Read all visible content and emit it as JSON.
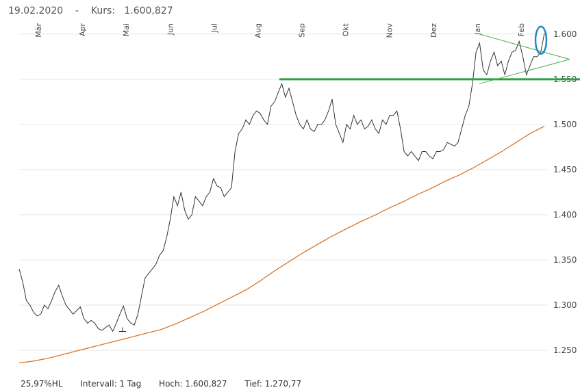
{
  "header": {
    "date": "19.02.2020",
    "separator": "-",
    "kurs_label": "Kurs:",
    "kurs_value": "1.600,827"
  },
  "footer": {
    "hl": "25,97%HL",
    "intervall": "Intervall: 1 Tag",
    "hoch": "Hoch: 1.600,827",
    "tief": "Tief:  1.270,77"
  },
  "colors": {
    "price": "#333333",
    "ma": "#d9762a",
    "support": "#2ea043",
    "triangle": "#4caf50",
    "circle": "#1e88c8",
    "grid": "#e6e6e6"
  },
  "chart_data": {
    "type": "line",
    "y_ticks": [
      "1.250",
      "1.300",
      "1.350",
      "1.400",
      "1.450",
      "1.500",
      "1.550",
      "1.600"
    ],
    "ylim": [
      1225,
      1615
    ],
    "months": [
      "Mär",
      "Apr",
      "Mai",
      "Jun",
      "Jul",
      "Aug",
      "Sep",
      "Okt",
      "Nov",
      "Dez",
      "Jan",
      "Feb"
    ],
    "grid": "horizontal",
    "series": [
      {
        "key": "price",
        "values": [
          1340,
          1325,
          1305,
          1300,
          1292,
          1288,
          1290,
          1300,
          1296,
          1305,
          1315,
          1322,
          1310,
          1300,
          1295,
          1290,
          1294,
          1298,
          1285,
          1280,
          1283,
          1280,
          1274,
          1272,
          1275,
          1278,
          1271,
          1280,
          1290,
          1299,
          1285,
          1280,
          1278,
          1290,
          1310,
          1330,
          1335,
          1340,
          1345,
          1355,
          1360,
          1375,
          1395,
          1420,
          1410,
          1425,
          1405,
          1395,
          1400,
          1420,
          1415,
          1410,
          1420,
          1425,
          1440,
          1432,
          1430,
          1420,
          1425,
          1430,
          1470,
          1490,
          1495,
          1505,
          1500,
          1510,
          1515,
          1512,
          1505,
          1500,
          1520,
          1525,
          1535,
          1545,
          1530,
          1540,
          1525,
          1510,
          1500,
          1495,
          1505,
          1495,
          1492,
          1500,
          1500,
          1505,
          1515,
          1528,
          1500,
          1490,
          1480,
          1500,
          1495,
          1510,
          1500,
          1505,
          1495,
          1498,
          1505,
          1495,
          1490,
          1505,
          1500,
          1510,
          1510,
          1515,
          1495,
          1470,
          1465,
          1470,
          1465,
          1460,
          1470,
          1470,
          1465,
          1462,
          1470,
          1470,
          1472,
          1480,
          1478,
          1476,
          1480,
          1495,
          1510,
          1520,
          1545,
          1580,
          1590,
          1560,
          1555,
          1570,
          1580,
          1565,
          1570,
          1555,
          1570,
          1580,
          1582,
          1592,
          1575,
          1555,
          1565,
          1575,
          1575,
          1580,
          1601
        ]
      },
      {
        "key": "ma",
        "values": [
          1236,
          1238,
          1241,
          1245,
          1249,
          1253,
          1257,
          1261,
          1265,
          1269,
          1273,
          1279,
          1286,
          1293,
          1301,
          1309,
          1317,
          1327,
          1338,
          1348,
          1358,
          1367,
          1376,
          1384,
          1392,
          1399,
          1407,
          1414,
          1422,
          1429,
          1437,
          1444,
          1452,
          1461,
          1470,
          1480,
          1490,
          1498
        ]
      }
    ],
    "annotations": {
      "support_level": 1550,
      "triangle_upper": [
        1600,
        1572
      ],
      "triangle_lower": [
        1545,
        1572
      ],
      "low_marker": 1270.77,
      "high_marker": 1600.827
    }
  }
}
